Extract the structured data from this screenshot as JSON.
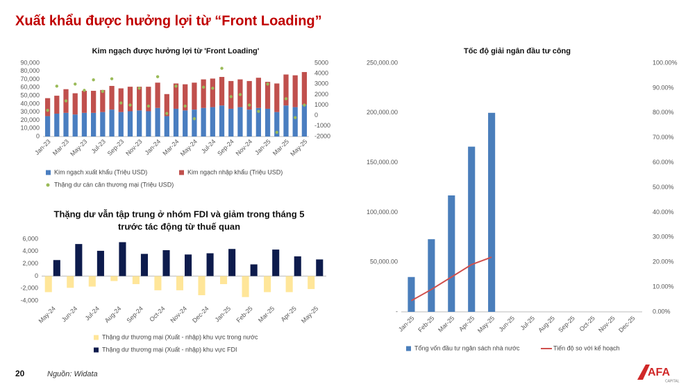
{
  "page": {
    "title": "Xuất khẩu được hưởng lợi từ “Front Loading”",
    "page_number": "20",
    "source": "Nguồn: Widata",
    "logo": "AFA",
    "logo_sub": "CAPITAL"
  },
  "chart_data": [
    {
      "type": "bar",
      "stacked": true,
      "title": [
        "Kim ngạch được hưởng lợi từ 'Front Loading'"
      ],
      "categories": [
        "Jan-23",
        null,
        "Mar-23",
        null,
        "May-23",
        null,
        "Jul-23",
        null,
        "Sep-23",
        null,
        "Nov-23",
        null,
        "Jan-24",
        null,
        "Mar-24",
        null,
        "May-24",
        null,
        "Jul-24",
        null,
        "Sep-24",
        null,
        "Nov-24",
        null,
        "Jan-25",
        null,
        "Mar-25",
        null,
        "May-25"
      ],
      "series": [
        {
          "name": "Kim ngạch xuất khẩu (Triệu USD)",
          "color": "#4a7ec0",
          "values": [
            25000,
            28000,
            29000,
            27000,
            29000,
            29000,
            30000,
            33000,
            30000,
            31000,
            32000,
            31000,
            35000,
            25000,
            34000,
            32000,
            33000,
            35000,
            36000,
            38000,
            34000,
            36000,
            33000,
            35000,
            34000,
            30000,
            38000,
            36000,
            39000
          ]
        },
        {
          "name": "Kim ngạch nhập khẩu (Triệu USD)",
          "color": "#c0504d",
          "values": [
            22000,
            22000,
            29000,
            26000,
            27000,
            27000,
            27000,
            29000,
            29000,
            30000,
            29000,
            30000,
            31000,
            27000,
            31000,
            32000,
            33000,
            35000,
            35000,
            35000,
            34000,
            34000,
            35000,
            37000,
            33000,
            35000,
            38000,
            39000,
            40000
          ]
        },
        {
          "name": "Thặng dư cán cân thương mại (Triệu USD)",
          "color": "#9bbb59",
          "type": "scatter",
          "axis": "y2",
          "values": [
            500,
            2800,
            1400,
            3000,
            2400,
            3400,
            2300,
            3500,
            1200,
            1000,
            2600,
            900,
            3700,
            200,
            2800,
            900,
            -300,
            2700,
            2600,
            4500,
            1800,
            2000,
            1000,
            400,
            3000,
            -1600,
            1600,
            -200,
            1000
          ]
        }
      ],
      "ylim": [
        0,
        90000
      ],
      "yticks": [
        0,
        {
          "value": 10000,
          "label": "10,000"
        },
        {
          "value": 20000,
          "label": "20,000"
        },
        {
          "value": 30000,
          "label": "30,000"
        },
        {
          "value": 40000,
          "label": "40,000"
        },
        {
          "value": 50000,
          "label": "50,000"
        },
        {
          "value": 60000,
          "label": "60,000"
        },
        {
          "value": 70000,
          "label": "70,000"
        },
        {
          "value": 80000,
          "label": "80,000"
        },
        {
          "value": 90000,
          "label": "90,000"
        }
      ],
      "y2lim": [
        -2000,
        5000
      ],
      "y2ticks": [
        -2000,
        -1000,
        0,
        1000,
        2000,
        3000,
        4000,
        5000
      ],
      "grid": false
    },
    {
      "type": "bar",
      "stacked": false,
      "title": [
        "Thặng dư vẫn tập trung ở nhóm FDI và giảm trong tháng 5",
        "trước tác động từ thuế quan"
      ],
      "categories": [
        "May-24",
        "Jun-24",
        "Jul-24",
        "Aug-24",
        "Sep-24",
        "Oct-24",
        "Nov-24",
        "Dec-24",
        "Jan-25",
        "Feb-25",
        "Mar-25",
        "Apr-25",
        "May-25"
      ],
      "series": [
        {
          "name": "Thặng dư thương mại (Xuất - nhập) khu vực trong nước",
          "color": "#ffe699",
          "values": [
            -2600,
            -1900,
            -1700,
            -800,
            -1300,
            -2300,
            -2300,
            -3100,
            -1300,
            -3400,
            -2600,
            -2600,
            -2100
          ]
        },
        {
          "name": "Thặng dư thương mại (Xuất - nhập) khu vực FDI",
          "color": "#0d1b4c",
          "values": [
            2600,
            5200,
            4100,
            5500,
            3600,
            4200,
            3500,
            3700,
            4400,
            1900,
            4300,
            3200,
            2700
          ]
        }
      ],
      "ylim": [
        -4000,
        6000
      ],
      "yticks": [
        {
          "value": -4000,
          "label": "-4,000"
        },
        {
          "value": -2000,
          "label": "-2,000"
        },
        0,
        {
          "value": 2000,
          "label": "2,000"
        },
        {
          "value": 4000,
          "label": "4,000"
        },
        {
          "value": 6000,
          "label": "6,000"
        }
      ],
      "grid": false
    },
    {
      "type": "bar",
      "stacked": false,
      "title": [
        "Tốc độ giải ngân đầu tư công"
      ],
      "categories": [
        "Jan-25",
        "Feb-25",
        "Mar-25",
        "Apr-25",
        "May-25",
        "Jun-25",
        "Jul-25",
        "Aug-25",
        "Sep-25",
        "Oct-25",
        "Nov-25",
        "Dec-25"
      ],
      "series": [
        {
          "name": "Tổng vốn đầu tư ngân sách nhà nước",
          "color": "#4a7ebb",
          "values": [
            35000,
            73000,
            117000,
            166000,
            200000,
            null,
            null,
            null,
            null,
            null,
            null,
            null
          ]
        },
        {
          "name": "Tiến độ so với kế hoạch",
          "color": "#d0504d",
          "type": "line",
          "axis": "y2",
          "values": [
            4.5,
            9,
            14,
            19,
            22,
            null,
            null,
            null,
            null,
            null,
            null,
            null
          ]
        }
      ],
      "ylim": [
        0,
        250000
      ],
      "yticks": [
        {
          "value": 0,
          "label": "-"
        },
        {
          "value": 50000,
          "label": "50,000.00"
        },
        {
          "value": 100000,
          "label": "100,000.00"
        },
        {
          "value": 150000,
          "label": "150,000.00"
        },
        {
          "value": 200000,
          "label": "200,000.00"
        },
        {
          "value": 250000,
          "label": "250,000.00"
        }
      ],
      "y2lim": [
        0,
        100
      ],
      "y2ticks": [
        {
          "value": 0,
          "label": "0.00%"
        },
        {
          "value": 10,
          "label": "10.00%"
        },
        {
          "value": 20,
          "label": "20.00%"
        },
        {
          "value": 30,
          "label": "30.00%"
        },
        {
          "value": 40,
          "label": "40.00%"
        },
        {
          "value": 50,
          "label": "50.00%"
        },
        {
          "value": 60,
          "label": "60.00%"
        },
        {
          "value": 70,
          "label": "70.00%"
        },
        {
          "value": 80,
          "label": "80.00%"
        },
        {
          "value": 90,
          "label": "90.00%"
        },
        {
          "value": 100,
          "label": "100.00%"
        }
      ],
      "grid": false
    }
  ]
}
